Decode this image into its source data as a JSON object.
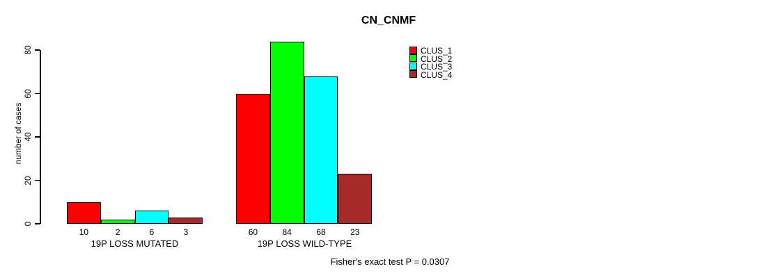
{
  "chart_data": {
    "type": "bar",
    "title": "CN_CNMF",
    "xlabel": "",
    "ylabel": "number of cases",
    "yticks": [
      0,
      20,
      40,
      60,
      80
    ],
    "ylim": [
      0,
      87
    ],
    "grid": false,
    "legend_position": "top-right",
    "categories": [
      "19P LOSS MUTATED",
      "19P LOSS WILD-TYPE"
    ],
    "groups": [
      {
        "label": "19P LOSS MUTATED",
        "values": [
          10,
          2,
          6,
          3
        ]
      },
      {
        "label": "19P LOSS WILD-TYPE",
        "values": [
          60,
          84,
          68,
          23
        ]
      }
    ],
    "series": [
      {
        "name": "CLUS_1",
        "color": "#FF0000"
      },
      {
        "name": "CLUS_2",
        "color": "#00FF00"
      },
      {
        "name": "CLUS_3",
        "color": "#00FFFF"
      },
      {
        "name": "CLUS_4",
        "color": "#A52A2A"
      }
    ],
    "bar_value_labels": [
      [
        10,
        2,
        6,
        3
      ],
      [
        60,
        84,
        68,
        23
      ]
    ],
    "annotation": "Fisher's exact test P = 0.0307"
  },
  "colors": {
    "background": "#FFFFFF",
    "axis": "#000000",
    "text": "#000000"
  }
}
